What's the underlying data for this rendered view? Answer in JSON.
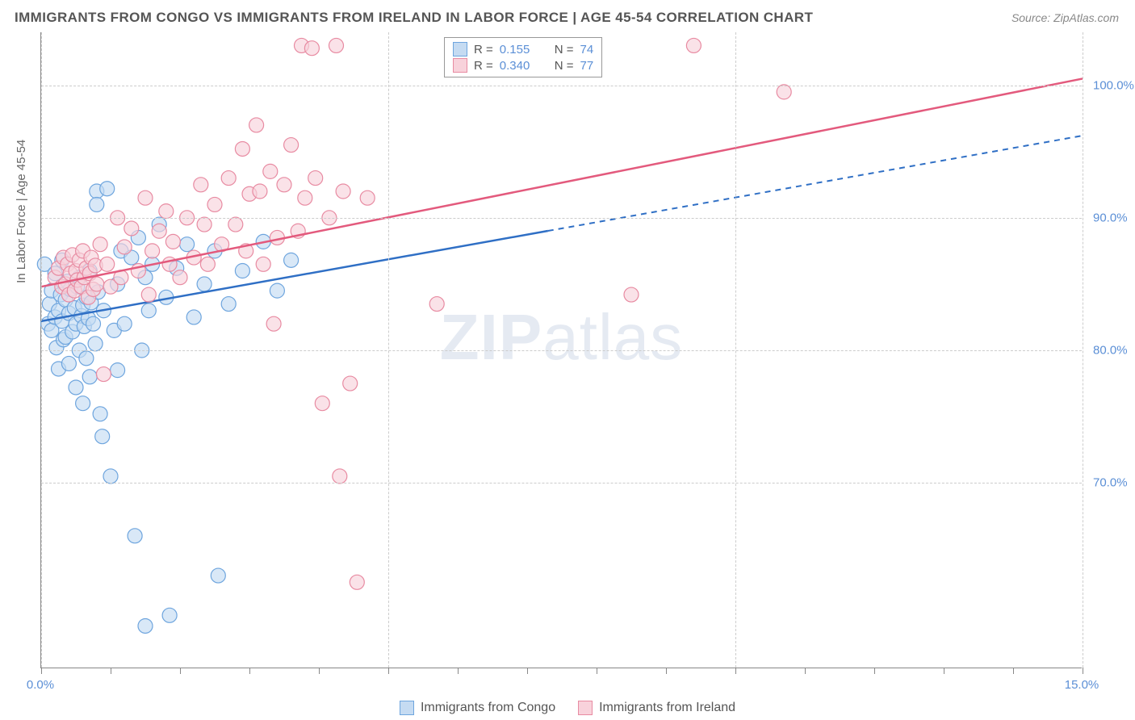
{
  "title": "IMMIGRANTS FROM CONGO VS IMMIGRANTS FROM IRELAND IN LABOR FORCE | AGE 45-54 CORRELATION CHART",
  "source": "Source: ZipAtlas.com",
  "ylabel": "In Labor Force | Age 45-54",
  "watermark_a": "ZIP",
  "watermark_b": "atlas",
  "chart": {
    "type": "scatter",
    "xlim": [
      0,
      15
    ],
    "ylim": [
      56,
      104
    ],
    "x_ticks": [
      0,
      5,
      10,
      15
    ],
    "x_tick_labels": {
      "0": "0.0%",
      "15": "15.0%"
    },
    "y_ticks": [
      70,
      80,
      90,
      100
    ],
    "y_tick_labels": {
      "70": "70.0%",
      "80": "80.0%",
      "90": "90.0%",
      "100": "100.0%"
    },
    "x_minor_step": 1,
    "background_color": "#ffffff",
    "grid_color": "#cccccc",
    "series": [
      {
        "name": "Immigrants from Congo",
        "color_fill": "#c5dbf2",
        "color_stroke": "#6ea5de",
        "color_line": "#2f6fc5",
        "swatch_fill": "#c5dbf2",
        "swatch_stroke": "#6ea5de",
        "R": "0.155",
        "N": "74",
        "marker_radius": 9,
        "regression": {
          "x1": 0,
          "y1": 82.2,
          "x2": 15,
          "y2": 96.2,
          "solid_until_x": 7.3
        },
        "points": [
          [
            0.05,
            86.5
          ],
          [
            0.1,
            82.0
          ],
          [
            0.12,
            83.5
          ],
          [
            0.15,
            81.5
          ],
          [
            0.15,
            84.5
          ],
          [
            0.2,
            85.8
          ],
          [
            0.2,
            82.5
          ],
          [
            0.22,
            80.2
          ],
          [
            0.25,
            83.0
          ],
          [
            0.25,
            78.6
          ],
          [
            0.28,
            84.2
          ],
          [
            0.3,
            82.2
          ],
          [
            0.3,
            86.8
          ],
          [
            0.32,
            80.8
          ],
          [
            0.35,
            83.8
          ],
          [
            0.35,
            81.0
          ],
          [
            0.38,
            85.2
          ],
          [
            0.4,
            82.8
          ],
          [
            0.4,
            79.0
          ],
          [
            0.42,
            84.6
          ],
          [
            0.45,
            81.4
          ],
          [
            0.48,
            83.2
          ],
          [
            0.5,
            77.2
          ],
          [
            0.5,
            82.0
          ],
          [
            0.52,
            84.8
          ],
          [
            0.55,
            80.0
          ],
          [
            0.55,
            85.5
          ],
          [
            0.58,
            82.6
          ],
          [
            0.6,
            76.0
          ],
          [
            0.6,
            83.4
          ],
          [
            0.62,
            81.8
          ],
          [
            0.65,
            84.0
          ],
          [
            0.65,
            79.4
          ],
          [
            0.68,
            82.4
          ],
          [
            0.7,
            86.0
          ],
          [
            0.7,
            78.0
          ],
          [
            0.72,
            83.6
          ],
          [
            0.75,
            82.0
          ],
          [
            0.78,
            80.5
          ],
          [
            0.8,
            92.0
          ],
          [
            0.8,
            91.0
          ],
          [
            0.82,
            84.4
          ],
          [
            0.85,
            75.2
          ],
          [
            0.88,
            73.5
          ],
          [
            0.9,
            83.0
          ],
          [
            0.95,
            92.2
          ],
          [
            1.0,
            70.5
          ],
          [
            1.05,
            81.5
          ],
          [
            1.1,
            85.0
          ],
          [
            1.1,
            78.5
          ],
          [
            1.15,
            87.5
          ],
          [
            1.2,
            82.0
          ],
          [
            1.3,
            87.0
          ],
          [
            1.35,
            66.0
          ],
          [
            1.4,
            88.5
          ],
          [
            1.45,
            80.0
          ],
          [
            1.5,
            85.5
          ],
          [
            1.5,
            59.2
          ],
          [
            1.55,
            83.0
          ],
          [
            1.6,
            86.5
          ],
          [
            1.7,
            89.5
          ],
          [
            1.8,
            84.0
          ],
          [
            1.85,
            60.0
          ],
          [
            1.95,
            86.2
          ],
          [
            2.1,
            88.0
          ],
          [
            2.2,
            82.5
          ],
          [
            2.35,
            85.0
          ],
          [
            2.5,
            87.5
          ],
          [
            2.55,
            63.0
          ],
          [
            2.7,
            83.5
          ],
          [
            2.9,
            86.0
          ],
          [
            3.2,
            88.2
          ],
          [
            3.4,
            84.5
          ],
          [
            3.6,
            86.8
          ]
        ]
      },
      {
        "name": "Immigrants from Ireland",
        "color_fill": "#f8d2db",
        "color_stroke": "#e88ba2",
        "color_line": "#e35a7d",
        "swatch_fill": "#f8d2db",
        "swatch_stroke": "#e88ba2",
        "R": "0.340",
        "N": "77",
        "marker_radius": 9,
        "regression": {
          "x1": 0,
          "y1": 84.8,
          "x2": 15,
          "y2": 100.5,
          "solid_until_x": 15
        },
        "points": [
          [
            0.2,
            85.5
          ],
          [
            0.25,
            86.2
          ],
          [
            0.3,
            84.8
          ],
          [
            0.32,
            87.0
          ],
          [
            0.35,
            85.0
          ],
          [
            0.38,
            86.5
          ],
          [
            0.4,
            84.2
          ],
          [
            0.42,
            85.8
          ],
          [
            0.45,
            87.2
          ],
          [
            0.48,
            84.5
          ],
          [
            0.5,
            86.0
          ],
          [
            0.52,
            85.3
          ],
          [
            0.55,
            86.8
          ],
          [
            0.58,
            84.8
          ],
          [
            0.6,
            87.5
          ],
          [
            0.62,
            85.5
          ],
          [
            0.65,
            86.2
          ],
          [
            0.68,
            84.0
          ],
          [
            0.7,
            85.8
          ],
          [
            0.72,
            87.0
          ],
          [
            0.75,
            84.6
          ],
          [
            0.78,
            86.4
          ],
          [
            0.8,
            85.0
          ],
          [
            0.85,
            88.0
          ],
          [
            0.9,
            78.2
          ],
          [
            0.95,
            86.5
          ],
          [
            1.0,
            84.8
          ],
          [
            1.1,
            90.0
          ],
          [
            1.15,
            85.5
          ],
          [
            1.2,
            87.8
          ],
          [
            1.3,
            89.2
          ],
          [
            1.4,
            86.0
          ],
          [
            1.5,
            91.5
          ],
          [
            1.55,
            84.2
          ],
          [
            1.6,
            87.5
          ],
          [
            1.7,
            89.0
          ],
          [
            1.8,
            90.5
          ],
          [
            1.85,
            86.5
          ],
          [
            1.9,
            88.2
          ],
          [
            2.0,
            85.5
          ],
          [
            2.1,
            90.0
          ],
          [
            2.2,
            87.0
          ],
          [
            2.3,
            92.5
          ],
          [
            2.35,
            89.5
          ],
          [
            2.4,
            86.5
          ],
          [
            2.5,
            91.0
          ],
          [
            2.6,
            88.0
          ],
          [
            2.7,
            93.0
          ],
          [
            2.8,
            89.5
          ],
          [
            2.9,
            95.2
          ],
          [
            2.95,
            87.5
          ],
          [
            3.0,
            91.8
          ],
          [
            3.1,
            97.0
          ],
          [
            3.15,
            92.0
          ],
          [
            3.2,
            86.5
          ],
          [
            3.3,
            93.5
          ],
          [
            3.35,
            82.0
          ],
          [
            3.4,
            88.5
          ],
          [
            3.5,
            92.5
          ],
          [
            3.6,
            95.5
          ],
          [
            3.7,
            89.0
          ],
          [
            3.75,
            103.0
          ],
          [
            3.8,
            91.5
          ],
          [
            3.9,
            102.8
          ],
          [
            3.95,
            93.0
          ],
          [
            4.05,
            76.0
          ],
          [
            4.15,
            90.0
          ],
          [
            4.25,
            103.0
          ],
          [
            4.3,
            70.5
          ],
          [
            4.35,
            92.0
          ],
          [
            4.45,
            77.5
          ],
          [
            4.55,
            62.5
          ],
          [
            4.7,
            91.5
          ],
          [
            5.7,
            83.5
          ],
          [
            8.5,
            84.2
          ],
          [
            9.4,
            103.0
          ],
          [
            10.7,
            99.5
          ]
        ]
      }
    ]
  },
  "legend_bottom": [
    {
      "label": "Immigrants from Congo"
    },
    {
      "label": "Immigrants from Ireland"
    }
  ]
}
